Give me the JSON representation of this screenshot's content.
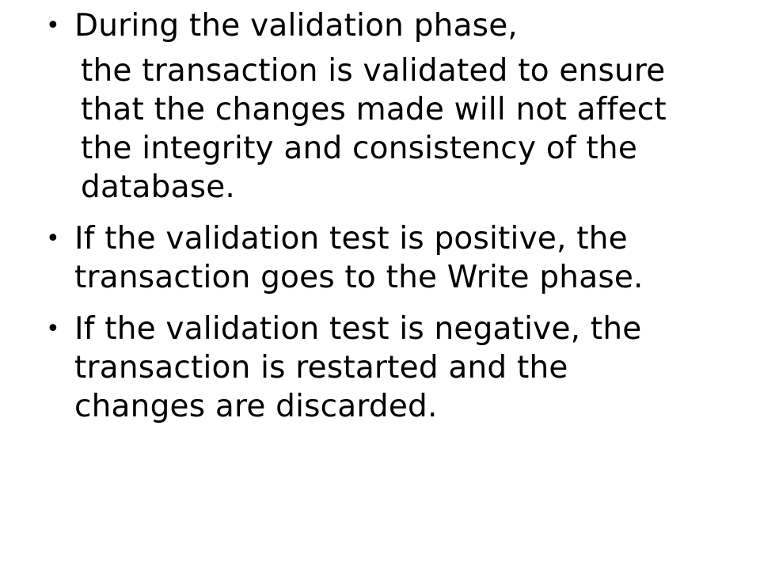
{
  "slide": {
    "bullet_1": {
      "bullet_char": "•",
      "text": "During the validation phase,"
    },
    "sub_paragraph": {
      "lines": [
        "the transaction is validated to ensure",
        "that the changes made will not affect",
        "the integrity and consistency of the",
        "database."
      ]
    },
    "bullet_2": {
      "bullet_char": "•",
      "lines": [
        "If the validation test is positive, the",
        "transaction goes to the Write phase."
      ]
    },
    "bullet_3": {
      "bullet_char": "•",
      "lines": [
        "If the validation test is negative, the",
        "transaction is restarted and the",
        "changes are discarded."
      ]
    }
  }
}
